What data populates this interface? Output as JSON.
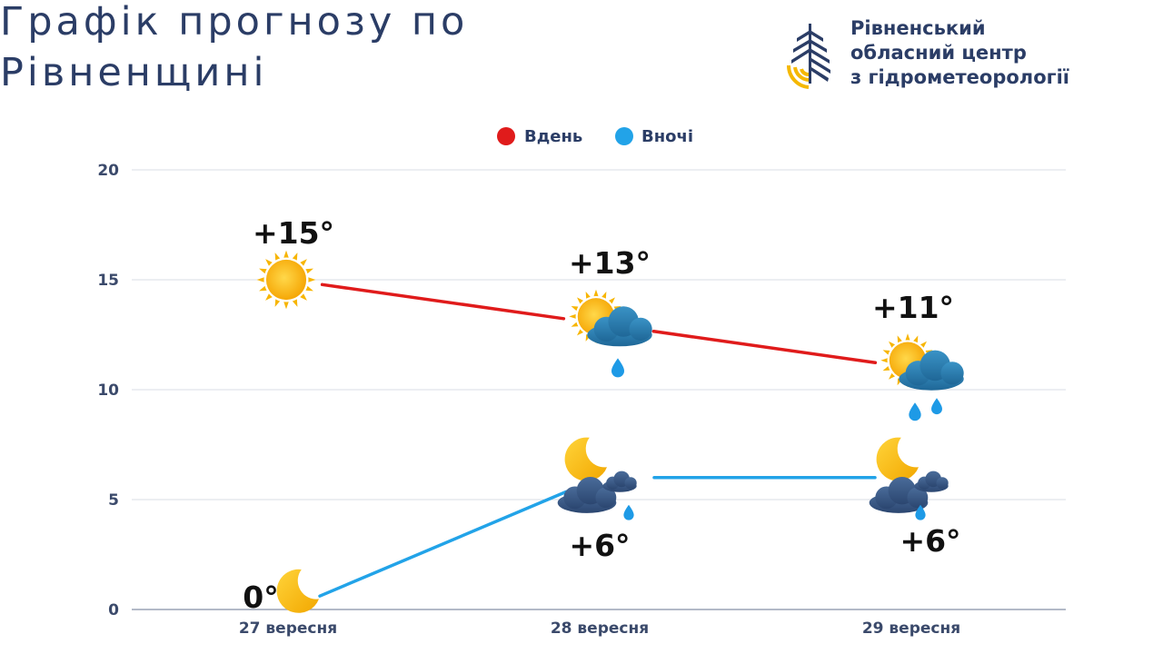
{
  "header": {
    "title_line1": "Графік прогнозу по",
    "title_line2": "Рівненщині"
  },
  "organization": {
    "name_line1": "Рівненський",
    "name_line2": "обласний центр",
    "name_line3": "з гідрометеорології",
    "logo_icon": "water-drop-wheat-logo-icon"
  },
  "chart_data": {
    "type": "line",
    "categories": [
      "27 вересня",
      "28 вересня",
      "29 вересня"
    ],
    "series": [
      {
        "name": "Вдень",
        "color": "#e01b1b",
        "values": [
          15,
          13,
          11
        ],
        "labels": [
          "+15°",
          "+13°",
          "+11°"
        ],
        "icons": [
          "sun-icon",
          "sun-cloud-rain-icon",
          "sun-cloud-rain-icon"
        ]
      },
      {
        "name": "Вночі",
        "color": "#22a3e8",
        "values": [
          0,
          6,
          6
        ],
        "labels": [
          "0°",
          "+6°",
          "+6°"
        ],
        "icons": [
          "moon-icon",
          "moon-cloud-rain-icon",
          "moon-cloud-rain-icon"
        ]
      }
    ],
    "ylim": [
      0,
      20
    ],
    "yticks": [
      0,
      5,
      10,
      15,
      20
    ],
    "grid": true,
    "legend_position": "top-center",
    "title": "",
    "xlabel": "",
    "ylabel": ""
  }
}
